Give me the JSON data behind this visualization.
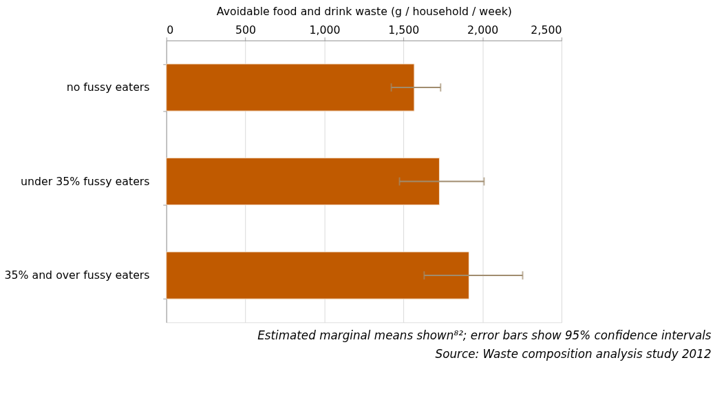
{
  "chart_data": {
    "type": "bar",
    "orientation": "horizontal",
    "xlabel": "Avoidable food and drink waste (g / household / week)",
    "categories": [
      "no fussy eaters",
      "under 35% fussy eaters",
      "35% and over fussy eaters"
    ],
    "values": [
      1568,
      1727,
      1914
    ],
    "errors": [
      [
        1423,
        1735
      ],
      [
        1475,
        2010
      ],
      [
        1631,
        2254
      ]
    ],
    "color": "#c05a00",
    "xlim": [
      0,
      2500
    ],
    "xticks": [
      {
        "value": 0,
        "label": "0"
      },
      {
        "value": 500,
        "label": "500"
      },
      {
        "value": 1000,
        "label": "1,000"
      },
      {
        "value": 1500,
        "label": "1,500"
      },
      {
        "value": 2000,
        "label": "2,000"
      },
      {
        "value": 2500,
        "label": "2,500"
      }
    ],
    "grid": "x",
    "annotations": [
      "Estimated marginal means shown⁸²; error bars show 95% confidence intervals",
      "Source: Waste composition analysis study 2012"
    ]
  }
}
